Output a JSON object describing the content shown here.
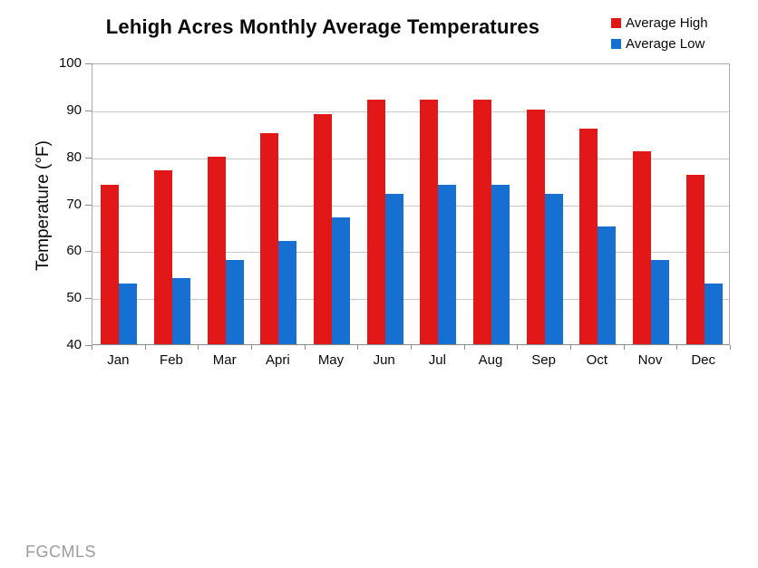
{
  "watermark": "FGCMLS",
  "chart_data": {
    "type": "bar",
    "title": "Lehigh Acres Monthly Average Temperatures",
    "xlabel": "",
    "ylabel": "Temperature (°F)",
    "categories": [
      "Jan",
      "Feb",
      "Mar",
      "Apri",
      "May",
      "Jun",
      "Jul",
      "Aug",
      "Sep",
      "Oct",
      "Nov",
      "Dec"
    ],
    "series": [
      {
        "name": "Average High",
        "color": "#e21717",
        "values": [
          74,
          77,
          80,
          85,
          89,
          92,
          92,
          92,
          90,
          86,
          81,
          76
        ]
      },
      {
        "name": "Average Low",
        "color": "#1570d2",
        "values": [
          53,
          54,
          58,
          62,
          67,
          72,
          74,
          74,
          72,
          65,
          58,
          53
        ]
      }
    ],
    "ylim": [
      40,
      100
    ],
    "ytick_step": 10,
    "grid": true,
    "legend_position": "top-right",
    "colors": {
      "grid_line": "#c9c9c9",
      "plot_border": "#ababab",
      "axis_line": "#8c8c8c"
    }
  }
}
